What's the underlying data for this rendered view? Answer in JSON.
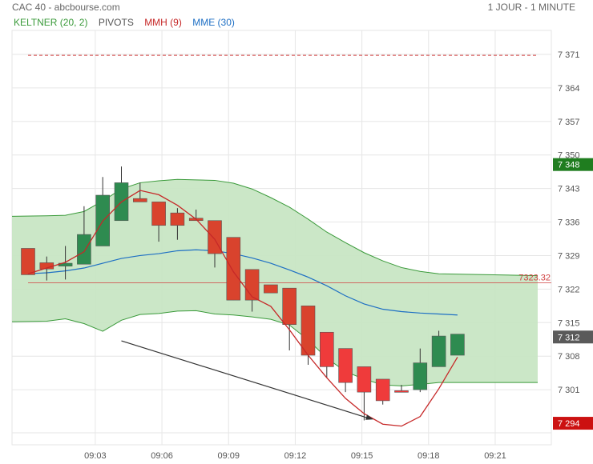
{
  "header": {
    "title": "CAC 40 - abcbourse.com",
    "period": "1 JOUR - 1 MINUTE"
  },
  "legend": [
    {
      "label": "KELTNER (20, 2)",
      "color": "#3a9a3a"
    },
    {
      "label": "PIVOTS",
      "color": "#555555"
    },
    {
      "label": "MMH (9)",
      "color": "#c62828"
    },
    {
      "label": "MME (30)",
      "color": "#1e6fc4"
    }
  ],
  "chart_data": {
    "type": "candlestick",
    "x_ticks": [
      "09:03",
      "09:06",
      "09:09",
      "09:12",
      "09:15",
      "09:18",
      "09:21"
    ],
    "y_ticks": [
      "7 371",
      "7 364",
      "7 357",
      "7 350",
      "7 343",
      "7 336",
      "7 329",
      "7 322",
      "7 315",
      "7 308",
      "7 301"
    ],
    "ylim": [
      7289.5,
      7376
    ],
    "candles": [
      {
        "open": 7330.5,
        "high": 7330.5,
        "low": 7325.0,
        "close": 7325.0
      },
      {
        "open": 7327.5,
        "high": 7328.8,
        "low": 7323.8,
        "close": 7326.2
      },
      {
        "open": 7326.8,
        "high": 7331.0,
        "low": 7324.0,
        "close": 7327.4
      },
      {
        "open": 7327.2,
        "high": 7339.3,
        "low": 7327.2,
        "close": 7333.4
      },
      {
        "open": 7331.0,
        "high": 7345.4,
        "low": 7331.0,
        "close": 7341.6
      },
      {
        "open": 7336.3,
        "high": 7347.6,
        "low": 7336.3,
        "close": 7344.2
      },
      {
        "open": 7340.9,
        "high": 7344.2,
        "low": 7340.2,
        "close": 7340.2
      },
      {
        "open": 7340.2,
        "high": 7340.2,
        "low": 7331.9,
        "close": 7335.3
      },
      {
        "open": 7337.9,
        "high": 7338.9,
        "low": 7332.3,
        "close": 7335.3
      },
      {
        "open": 7336.8,
        "high": 7338.6,
        "low": 7336.3,
        "close": 7336.3
      },
      {
        "open": 7336.3,
        "high": 7336.3,
        "low": 7326.5,
        "close": 7329.4
      },
      {
        "open": 7332.8,
        "high": 7332.8,
        "low": 7319.7,
        "close": 7319.7
      },
      {
        "open": 7326.1,
        "high": 7326.1,
        "low": 7317.3,
        "close": 7319.7
      },
      {
        "open": 7322.9,
        "high": 7322.9,
        "low": 7321.2,
        "close": 7321.2
      },
      {
        "open": 7322.2,
        "high": 7322.2,
        "low": 7309.2,
        "close": 7314.6
      },
      {
        "open": 7318.5,
        "high": 7318.5,
        "low": 7306.2,
        "close": 7308.2
      },
      {
        "open": 7313.0,
        "high": 7313.0,
        "low": 7303.5,
        "close": 7305.8
      },
      {
        "open": 7309.6,
        "high": 7309.6,
        "low": 7300.5,
        "close": 7302.5
      },
      {
        "open": 7305.8,
        "high": 7305.8,
        "low": 7294.6,
        "close": 7300.5
      },
      {
        "open": 7303.2,
        "high": 7303.2,
        "low": 7297.9,
        "close": 7298.7
      },
      {
        "open": 7300.8,
        "high": 7302.0,
        "low": 7300.5,
        "close": 7300.5
      },
      {
        "open": 7301.0,
        "high": 7309.6,
        "low": 7300.5,
        "close": 7306.6
      },
      {
        "open": 7305.8,
        "high": 7313.3,
        "low": 7305.8,
        "close": 7312.2
      },
      {
        "open": 7308.2,
        "high": 7312.6,
        "low": 7308.2,
        "close": 7312.6
      }
    ],
    "keltner_upper": [
      7337.2,
      7337.3,
      7337.4,
      7338.2,
      7340.4,
      7342.9,
      7344.2,
      7344.6,
      7344.9,
      7344.8,
      7344.7,
      7344.1,
      7342.9,
      7341.1,
      7339.1,
      7336.6,
      7333.9,
      7331.7,
      7329.6,
      7327.9,
      7326.5,
      7325.7,
      7325.2,
      7324.8
    ],
    "keltner_lower": [
      7315.2,
      7315.3,
      7315.8,
      7314.8,
      7313.2,
      7315.5,
      7316.7,
      7316.9,
      7317.4,
      7317.5,
      7316.8,
      7316.6,
      7316.2,
      7315.7,
      7314.5,
      7311.4,
      7307.6,
      7304.8,
      7303.2,
      7302.0,
      7301.8,
      7302.1,
      7302.5,
      7302.5
    ],
    "mme": [
      7325.2,
      7325.4,
      7325.8,
      7326.4,
      7327.4,
      7328.4,
      7329.0,
      7329.4,
      7330.0,
      7330.2,
      7330.0,
      7329.4,
      7328.5,
      7327.4,
      7326.0,
      7324.5,
      7322.7,
      7320.6,
      7318.9,
      7317.8,
      7317.3,
      7317.0,
      7316.8,
      7316.6
    ],
    "mmh": [
      7325.2,
      7326.4,
      7327.6,
      7329.8,
      7336.2,
      7340.2,
      7342.6,
      7341.7,
      7339.5,
      7336.6,
      7332.4,
      7325.6,
      7320.4,
      7318.4,
      7313.5,
      7308.2,
      7303.5,
      7299.2,
      7296.0,
      7293.8,
      7293.4,
      7295.4,
      7301.2,
      7307.8
    ],
    "pivot_resistance": 7370.8,
    "pivot_level": 7323.32,
    "pivot_label": "7323.32",
    "trend_arrow": {
      "from_candle": 5,
      "from_value": 7311.2,
      "to_candle": 18.5,
      "to_value": 7294.8
    },
    "price_tags": [
      {
        "label": "7 348",
        "value": 7348.0,
        "color": "#1f7d1f"
      },
      {
        "label": "7 312",
        "value": 7312.0,
        "color": "#5a5a5a"
      },
      {
        "label": "7 294",
        "value": 7294.0,
        "color": "#cc1111"
      }
    ],
    "colors": {
      "up": "#2e8b50",
      "down": "#d9432d",
      "down_bright": "#ef3b3b",
      "band_fill": "#c8e6c4",
      "band_line": "#3a9a3a",
      "mme": "#1e6fc4",
      "mmh": "#c62828",
      "pivot": "#d04040",
      "grid": "#e6e6e6",
      "arrow": "#333333"
    }
  }
}
